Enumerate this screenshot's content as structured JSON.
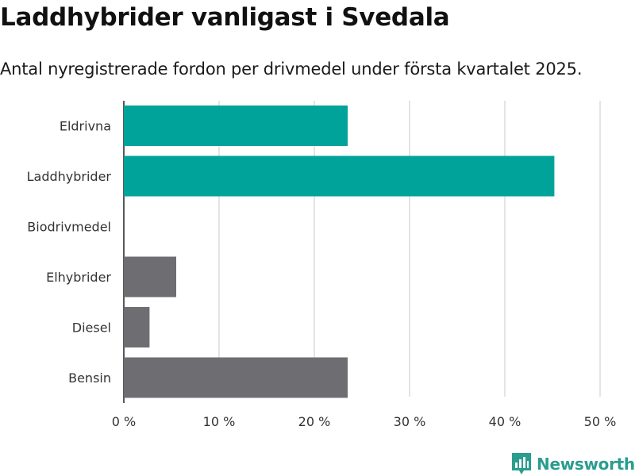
{
  "header": {
    "title": "Laddhybrider vanligast i Svedala",
    "subtitle": "Antal nyregistrerade fordon per drivmedel under första kvartalet 2025."
  },
  "brand": {
    "name": "Newsworthy",
    "icon": "newsworthy-logo-icon",
    "color": "#2a9d8f"
  },
  "chart_data": {
    "type": "bar",
    "orientation": "horizontal",
    "categories": [
      "Eldrivna",
      "Laddhybrider",
      "Biodrivmedel",
      "Elhybrider",
      "Diesel",
      "Bensin"
    ],
    "values": [
      23.5,
      45.2,
      0,
      5.5,
      2.7,
      23.5
    ],
    "colors": [
      "#00a39a",
      "#00a39a",
      "#00a39a",
      "#6e6d72",
      "#6e6d72",
      "#6e6d72"
    ],
    "xlim": [
      0,
      50
    ],
    "xticks": [
      {
        "value": 0,
        "label": "0 %"
      },
      {
        "value": 10,
        "label": "10 %"
      },
      {
        "value": 20,
        "label": "20 %"
      },
      {
        "value": 30,
        "label": "30 %"
      },
      {
        "value": 40,
        "label": "40 %"
      },
      {
        "value": 50,
        "label": "50 %"
      }
    ],
    "grid": true
  }
}
